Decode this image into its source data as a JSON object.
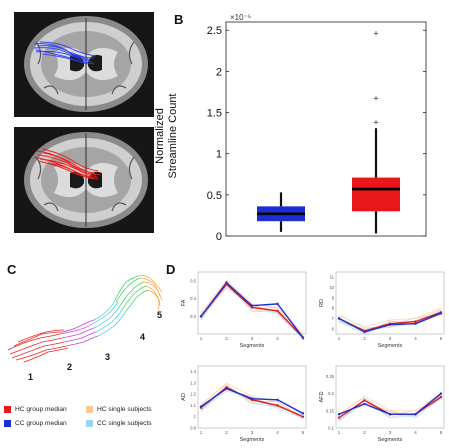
{
  "panels": {
    "a": "A",
    "b": "B",
    "c": "C",
    "d": "D"
  },
  "colors": {
    "hc": "#e8171b",
    "cc": "#1a2fd6",
    "hc_single": "#f8c99a",
    "cc_single": "#9fd2ee",
    "tract_a": "#2b3cf0",
    "tract_b": "#ee1a1a"
  },
  "boxplot": {
    "ylabel_line1": "Normalized",
    "ylabel_line2": "Streamline Count",
    "exponent": "×10⁻⁵",
    "ticks": [
      "0",
      "0.5",
      "1",
      "1.5",
      "2",
      "2.5"
    ]
  },
  "chart_data": [
    {
      "type": "box",
      "ylabel": "Normalized Streamline Count",
      "y_exponent": "1e-5",
      "ylim": [
        0,
        2.6
      ],
      "y_ticks": [
        0,
        0.5,
        1,
        1.5,
        2,
        2.5
      ],
      "series": [
        {
          "color": "#1a2fd6",
          "min": 0.05,
          "q1": 0.18,
          "median": 0.27,
          "q3": 0.36,
          "max": 0.53,
          "outliers": []
        },
        {
          "color": "#e8171b",
          "min": 0.03,
          "q1": 0.3,
          "median": 0.57,
          "q3": 0.71,
          "max": 1.31,
          "outliers": [
            1.38,
            1.67,
            2.46
          ]
        }
      ]
    },
    {
      "type": "line",
      "ylabel": "FA",
      "xlabel": "Segments",
      "x": [
        1,
        2,
        3,
        4,
        5
      ],
      "y_ticks": [
        0.3,
        0.4,
        0.5
      ],
      "ylim": [
        0.2,
        0.55
      ],
      "series": [
        {
          "name": "HC group median",
          "values": [
            0.3,
            0.48,
            0.35,
            0.33,
            0.18
          ]
        },
        {
          "name": "CC group median",
          "values": [
            0.3,
            0.49,
            0.36,
            0.37,
            0.18
          ]
        }
      ]
    },
    {
      "type": "line",
      "ylabel": "RD",
      "xlabel": "Segments",
      "x": [
        1,
        2,
        3,
        4,
        5
      ],
      "y_ticks": [
        6,
        7,
        8,
        9,
        10,
        11
      ],
      "y_exponent": "1e-4",
      "ylim": [
        5.5,
        11.5
      ],
      "series": [
        {
          "name": "HC group median",
          "values": [
            7.0,
            5.8,
            6.5,
            6.7,
            7.6
          ]
        },
        {
          "name": "CC group median",
          "values": [
            7.0,
            5.7,
            6.4,
            6.5,
            7.5
          ]
        }
      ]
    },
    {
      "type": "line",
      "ylabel": "AD",
      "xlabel": "Segments",
      "x": [
        1,
        2,
        3,
        4,
        5
      ],
      "y_ticks": [
        0.9,
        1,
        1.1,
        1.2,
        1.3,
        1.4
      ],
      "ylim": [
        0.9,
        1.45
      ],
      "series": [
        {
          "name": "HC group median",
          "values": [
            1.08,
            1.26,
            1.15,
            1.1,
            1.0
          ]
        },
        {
          "name": "CC group median",
          "values": [
            1.09,
            1.25,
            1.16,
            1.15,
            1.03
          ]
        }
      ]
    },
    {
      "type": "line",
      "ylabel": "AFD",
      "xlabel": "Segments",
      "x": [
        1,
        2,
        3,
        4,
        5
      ],
      "y_ticks": [
        0.1,
        0.15,
        0.2,
        0.25
      ],
      "ylim": [
        0.1,
        0.28
      ],
      "series": [
        {
          "name": "HC group median",
          "values": [
            0.13,
            0.18,
            0.14,
            0.14,
            0.19
          ]
        },
        {
          "name": "CC group median",
          "values": [
            0.14,
            0.17,
            0.14,
            0.14,
            0.2
          ]
        }
      ]
    }
  ],
  "segments": [
    "1",
    "2",
    "3",
    "4",
    "5"
  ],
  "legend": {
    "hc_median": "HC group median",
    "cc_median": "CC group median",
    "hc_single": "HC single subjects",
    "cc_single": "CC single subjects"
  },
  "line_plots": {
    "xlabel": "Segments",
    "rd_exponent": "×10⁻⁴"
  }
}
